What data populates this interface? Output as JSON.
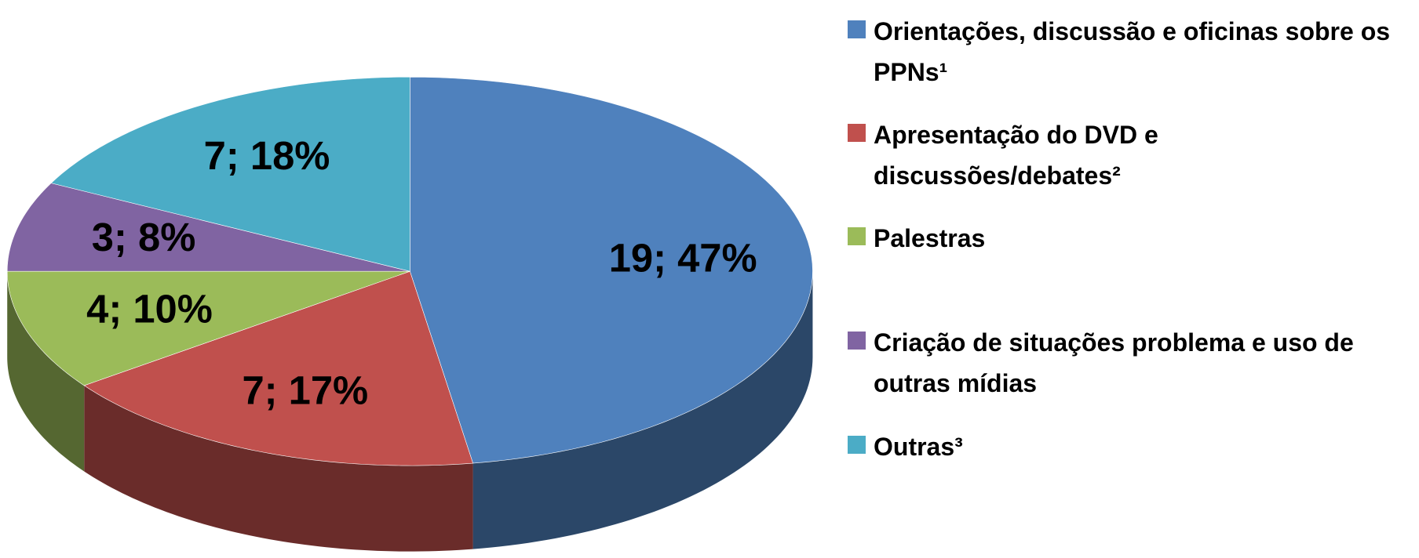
{
  "chart_data": {
    "type": "pie",
    "categories": [
      "Orientações, discussão e oficinas sobre os PPNs¹",
      "Apresentação do DVD e discussões/debates²",
      "Palestras",
      "Criação de situações problema e uso de outras mídias",
      "Outras³"
    ],
    "values": [
      19,
      7,
      4,
      3,
      7
    ],
    "value_labels": [
      "19; 47%",
      "7; 17%",
      "4; 10%",
      "3; 8%",
      "7; 18%"
    ],
    "colors": [
      "#4f81bd",
      "#c0504d",
      "#9bbb59",
      "#8064a2",
      "#4bacc6"
    ],
    "legend": "right"
  }
}
